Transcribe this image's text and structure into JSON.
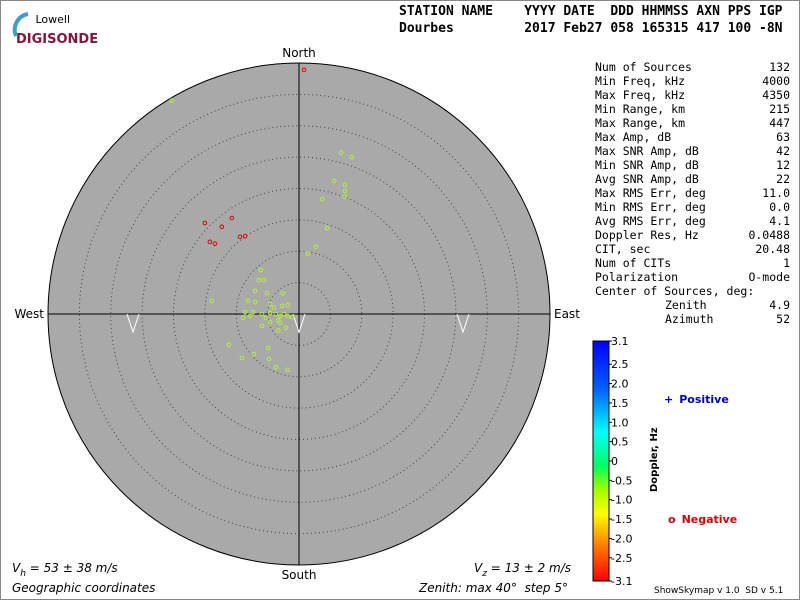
{
  "logo": {
    "top": "Lowell",
    "bottom": "DIGISONDE"
  },
  "header": {
    "line1": "STATION NAME    YYYY DATE  DDD HHMMSS AXN PPS IGP",
    "line2": "Dourbes         2017 Feb27 058 165315 417 100 -8N"
  },
  "stats": [
    {
      "label": "Num of Sources",
      "value": "132"
    },
    {
      "label": "Min Freq, kHz",
      "value": "4000"
    },
    {
      "label": "Max Freq, kHz",
      "value": "4350"
    },
    {
      "label": "Min Range, km",
      "value": "215"
    },
    {
      "label": "Max Range, km",
      "value": "447"
    },
    {
      "label": "Max Amp, dB",
      "value": "63"
    },
    {
      "label": "Max SNR Amp, dB",
      "value": "42"
    },
    {
      "label": "Min SNR Amp, dB",
      "value": "12"
    },
    {
      "label": "Avg SNR Amp, dB",
      "value": "22"
    },
    {
      "label": "Max RMS Err, deg",
      "value": "11.0"
    },
    {
      "label": "Min RMS Err, deg",
      "value": "0.0"
    },
    {
      "label": "Avg RMS Err, deg",
      "value": "4.1"
    },
    {
      "label": "Doppler Res, Hz",
      "value": "0.0488"
    },
    {
      "label": "CIT, sec",
      "value": "20.48"
    },
    {
      "label": "Num of CITs",
      "value": "1"
    },
    {
      "label": "Polarization",
      "value": "O-mode"
    }
  ],
  "center_of_sources": {
    "label": "Center of Sources, deg:",
    "zenith": {
      "label": "Zenith",
      "value": "4.9"
    },
    "azimuth": {
      "label": "Azimuth",
      "value": "52"
    }
  },
  "legend": {
    "positive": {
      "symbol": "+",
      "label": "Positive",
      "color": "#0000cc"
    },
    "negative": {
      "symbol": "o",
      "label": "Negative",
      "color": "#dd0000"
    }
  },
  "velocity": {
    "vh": {
      "symbol": "V",
      "subscript": "h",
      "text": " = 53 ± 38 m/s"
    },
    "vz": {
      "symbol": "V",
      "subscript": "z",
      "text": " = 13 ± 2 m/s"
    }
  },
  "footer": {
    "coords": "Geographic coordinates",
    "zenith": "Zenith: max 40°  step 5°",
    "version": "ShowSkymap v 1.0  SD v 5.1"
  },
  "chart_data": {
    "type": "skymap",
    "directions": {
      "north": "North",
      "south": "South",
      "east": "East",
      "west": "West"
    },
    "rlim": [
      0,
      40
    ],
    "rticks": [
      5,
      10,
      15,
      20,
      25,
      30,
      35,
      40
    ],
    "series": [
      {
        "color": "#e00000",
        "x": [
          0.8,
          -15.0,
          -10.7,
          -12.3,
          -9.4,
          -8.6,
          -14.2,
          -13.4
        ],
        "y": [
          38.9,
          14.5,
          15.3,
          13.9,
          12.3,
          12.4,
          11.5,
          11.2
        ]
      },
      {
        "color": "#b4f03c",
        "x": [
          -20.3,
          6.7,
          8.4,
          5.6,
          7.3,
          7.3,
          7.3,
          3.7,
          4.5,
          2.7,
          1.4,
          -6.1,
          -6.4,
          -5.6,
          -7.0,
          -5.1,
          -2.6,
          -13.9,
          -8.1,
          -7.0,
          -4.6,
          -2.7,
          -1.8,
          -8.6,
          -7.3,
          -5.9,
          -4.6,
          -3.7,
          -3.0,
          -2.4,
          -1.8,
          -1.1,
          -3.3,
          -4.6,
          -5.9,
          -7.8,
          -8.9,
          -3.3,
          -2.1,
          -11.2,
          -9.1,
          -7.2,
          -4.9,
          -4.8,
          -3.7,
          -1.8,
          -3.0,
          -5.3,
          -4.0
        ],
        "y": [
          34.0,
          25.7,
          25.0,
          21.2,
          20.6,
          19.6,
          18.7,
          18.3,
          13.7,
          10.7,
          9.6,
          7.0,
          5.4,
          5.4,
          3.7,
          3.3,
          3.3,
          2.1,
          2.1,
          1.9,
          1.6,
          1.3,
          1.4,
          0.3,
          0.3,
          0,
          0.2,
          0,
          -0.3,
          0,
          -0.3,
          -0.5,
          -1.0,
          -1.3,
          -1.9,
          -0.3,
          -0.6,
          -2.6,
          -2.2,
          -4.9,
          -7.0,
          -6.4,
          -5.4,
          -7.2,
          -8.5,
          -8.9,
          -1.4,
          -0.6,
          1.0
        ]
      }
    ],
    "colorbar": {
      "label": "Doppler, Hz",
      "lim": [
        -3.1,
        3.1
      ],
      "ticks": [
        3.1,
        2.5,
        {
          "value": 2,
          "label": "2.0"
        },
        1.5,
        {
          "value": 1,
          "label": "1.0"
        },
        0.5,
        0,
        -0.5,
        {
          "value": -1,
          "label": "-1.0"
        },
        -1.5,
        {
          "value": -2,
          "label": "-2.0"
        },
        -2.5,
        -3.1
      ]
    }
  }
}
